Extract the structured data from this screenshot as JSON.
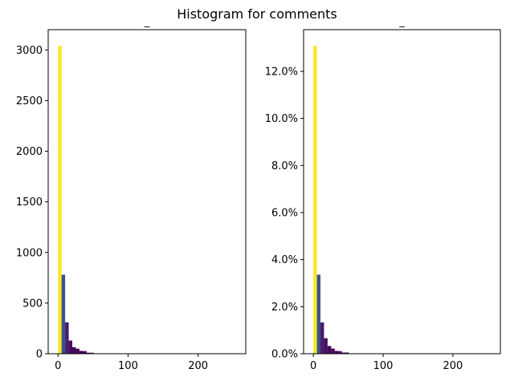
{
  "figure_title": "Histogram for comments",
  "chart_data": [
    {
      "type": "bar",
      "panel": "left",
      "title": "_",
      "xlabel": "",
      "ylabel": "",
      "xlim": [
        -14,
        268
      ],
      "ylim": [
        0,
        3200
      ],
      "xticks": [
        0,
        100,
        200
      ],
      "xtick_labels": [
        "0",
        "100",
        "200"
      ],
      "yticks": [
        0,
        500,
        1000,
        1500,
        2000,
        2500,
        3000
      ],
      "ytick_labels": [
        "0",
        "500",
        "1000",
        "1500",
        "2000",
        "2500",
        "3000"
      ],
      "bin_width": 5.1,
      "bin_starts": [
        0,
        5.1,
        10.2,
        15.3,
        20.4,
        25.5,
        30.6,
        35.7,
        40.8,
        45.9
      ],
      "values": [
        3040,
        780,
        310,
        130,
        65,
        50,
        28,
        26,
        10,
        10
      ],
      "grid": false
    },
    {
      "type": "bar",
      "panel": "right",
      "title": "_",
      "xlabel": "",
      "ylabel": "",
      "xlim": [
        -14,
        268
      ],
      "ylim": [
        0,
        0.1377
      ],
      "xticks": [
        0,
        100,
        200
      ],
      "xtick_labels": [
        "0",
        "100",
        "200"
      ],
      "yticks": [
        0,
        0.02,
        0.04,
        0.06,
        0.08,
        0.1,
        0.12
      ],
      "ytick_labels": [
        "0.0%",
        "2.0%",
        "4.0%",
        "6.0%",
        "8.0%",
        "10.0%",
        "12.0%"
      ],
      "bin_width": 5.1,
      "bin_starts": [
        0,
        5.1,
        10.2,
        15.3,
        20.4,
        25.5,
        30.6,
        35.7,
        40.8,
        45.9
      ],
      "values": [
        0.1308,
        0.0336,
        0.0133,
        0.0066,
        0.0033,
        0.0022,
        0.0012,
        0.0011,
        0.0005,
        0.0005
      ],
      "grid": false
    }
  ]
}
